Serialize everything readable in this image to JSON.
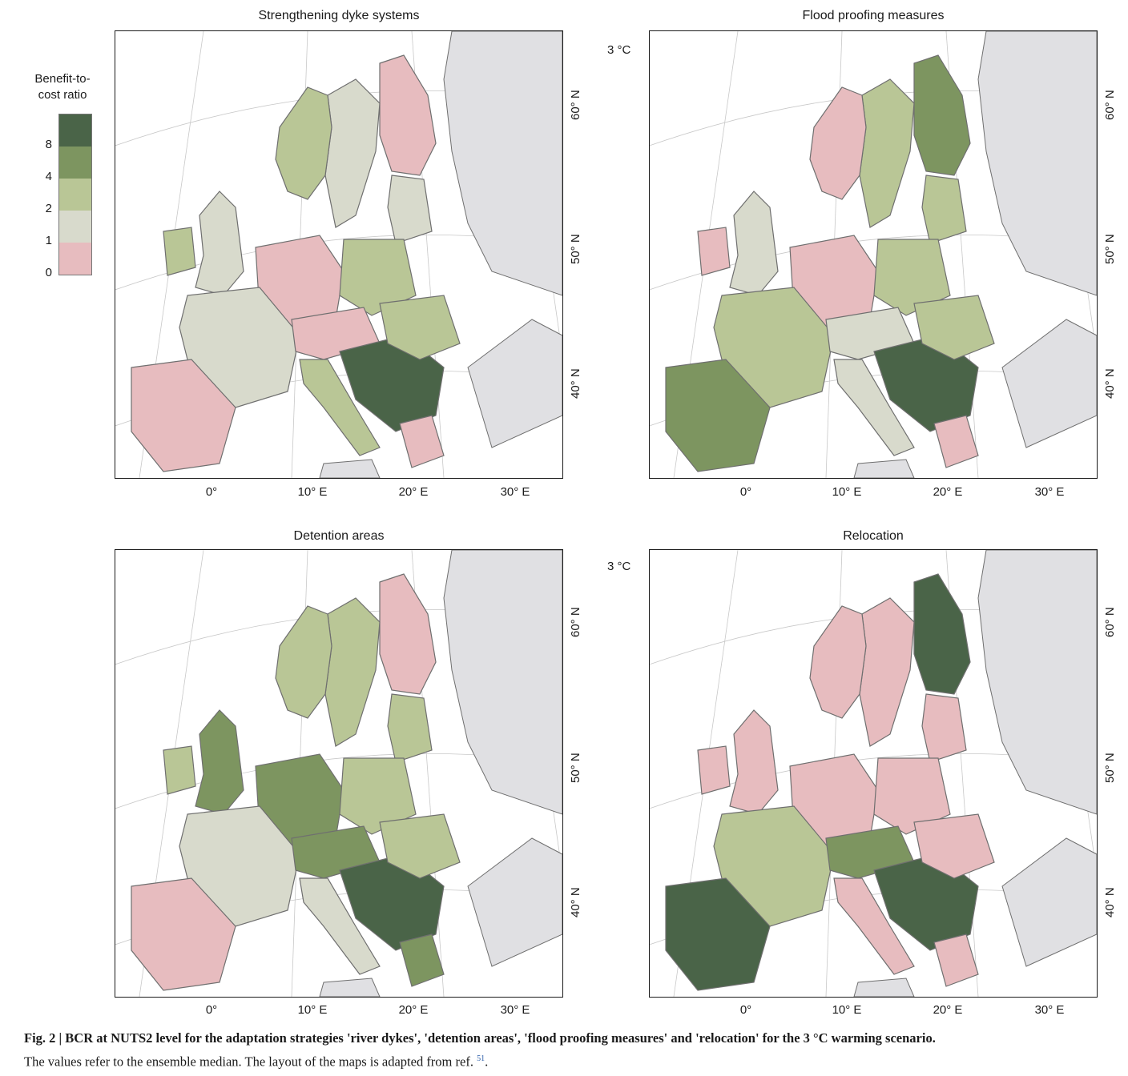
{
  "legend": {
    "title_line1": "Benefit-to-",
    "title_line2": "cost ratio",
    "ticks": [
      "8",
      "4",
      "2",
      "1",
      "0"
    ],
    "classes": [
      {
        "range": ">8",
        "color": "#4a6448"
      },
      {
        "range": "4–8",
        "color": "#7d9560"
      },
      {
        "range": "2–4",
        "color": "#b9c696"
      },
      {
        "range": "1–2",
        "color": "#d8dacc"
      },
      {
        "range": "0–1",
        "color": "#e7bcbf"
      }
    ]
  },
  "colors": {
    "sea": "#ffffff",
    "non_study_land": "#e0e0e3",
    "outline": "#6f6f6f",
    "graticule": "#c8c8c8"
  },
  "scenario_label": "3 °C",
  "axes": {
    "longitude_labels": [
      "0°",
      "10° E",
      "20° E",
      "30° E"
    ],
    "latitude_labels": [
      "60° N",
      "50° N",
      "40° N"
    ]
  },
  "panels": [
    {
      "title": "Strengthening dyke systems",
      "scheme": [
        "#e7bcbf",
        "#d8dacc",
        "#b9c696",
        "#d8dacc",
        "#e7bcbf",
        "#b9c696",
        "#d8dacc",
        "#e7bcbf",
        "#b9c696",
        "#4a6448"
      ]
    },
    {
      "title": "Flood proofing measures",
      "scheme": [
        "#7d9560",
        "#b9c696",
        "#e7bcbf",
        "#d8dacc",
        "#e7bcbf",
        "#b9c696",
        "#b9c696",
        "#d8dacc",
        "#d8dacc",
        "#4a6448"
      ]
    },
    {
      "title": "Detention areas",
      "scheme": [
        "#e7bcbf",
        "#b9c696",
        "#b9c696",
        "#7d9560",
        "#7d9560",
        "#b9c696",
        "#d8dacc",
        "#7d9560",
        "#d8dacc",
        "#4a6448"
      ]
    },
    {
      "title": "Relocation",
      "scheme": [
        "#4a6448",
        "#e7bcbf",
        "#e7bcbf",
        "#e7bcbf",
        "#e7bcbf",
        "#e7bcbf",
        "#b9c696",
        "#7d9560",
        "#e7bcbf",
        "#4a6448"
      ]
    }
  ],
  "caption": {
    "bold": "Fig. 2 | BCR at NUTS2 level for the adaptation strategies 'river dykes', 'detention areas', 'flood proofing measures' and 'relocation' for the 3  °C warming scenario.",
    "normal": "The values refer to the ensemble median. The layout of the maps is adapted from ref.",
    "ref": "51"
  }
}
